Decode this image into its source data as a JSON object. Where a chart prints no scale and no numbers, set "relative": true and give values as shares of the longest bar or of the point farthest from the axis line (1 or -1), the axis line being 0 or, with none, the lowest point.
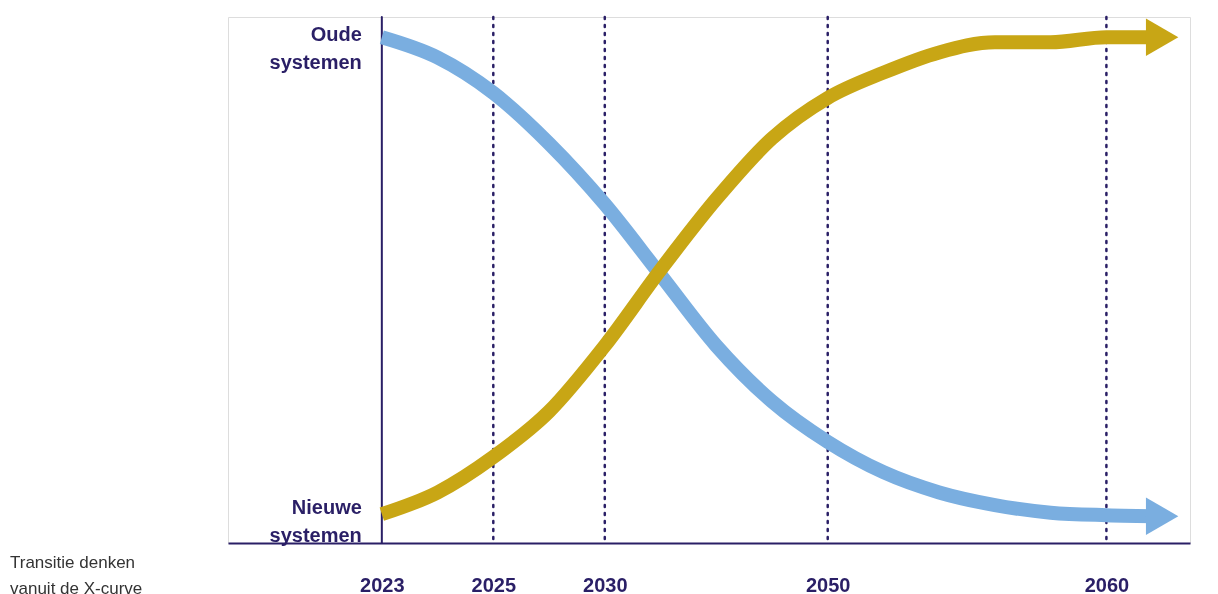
{
  "chart_data": {
    "type": "line",
    "relative": true,
    "categories": [
      "2023",
      null,
      "2025",
      null,
      "2030",
      null,
      null,
      null,
      "2050",
      null,
      null,
      null,
      null,
      "2060",
      null
    ],
    "series": [
      {
        "color": "#7aaee0",
        "values": [
          1.0,
          0.96,
          0.89,
          0.79,
          0.67,
          0.53,
          0.39,
          0.28,
          0.2,
          0.14,
          0.1,
          0.075,
          0.06,
          0.055,
          0.053
        ]
      },
      {
        "color": "#c8a615",
        "values": [
          0.057,
          0.1,
          0.17,
          0.26,
          0.39,
          0.54,
          0.68,
          0.8,
          0.88,
          0.93,
          0.97,
          0.99,
          0.99,
          1.0,
          1.0
        ]
      }
    ],
    "ref_lines": [
      {
        "axis": "x",
        "value": "2023",
        "line_style": "solid",
        "color": "#2a1f66"
      },
      {
        "axis": "x",
        "value": "2025",
        "line_style": "dotted",
        "color": "#2a1f66"
      },
      {
        "axis": "x",
        "value": "2030",
        "line_style": "dotted",
        "color": "#2a1f66"
      },
      {
        "axis": "x",
        "value": "2050",
        "line_style": "dotted",
        "color": "#2a1f66"
      },
      {
        "axis": "x",
        "value": "2060",
        "line_style": "dotted",
        "color": "#2a1f66"
      }
    ],
    "annotations": [
      "Oude\nsystemen",
      "Nieuwe\nsystemen",
      "Transitie denken\nvanuit de X-curve"
    ],
    "grid": false,
    "marker": "none",
    "line_style": "solid"
  }
}
